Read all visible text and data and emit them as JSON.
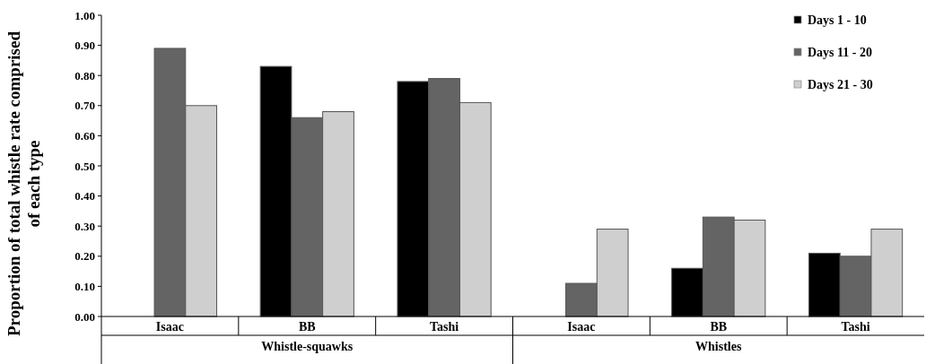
{
  "chart_data": {
    "type": "bar",
    "ylabel": "Proportion of total whistle rate comprised of each type",
    "categories": [
      "Isaac",
      "BB",
      "Tashi",
      "Isaac",
      "BB",
      "Tashi"
    ],
    "annotations": [
      "Whistle-squawks",
      "Whistles"
    ],
    "series": [
      {
        "name": "Days 1 - 10",
        "color": "#000000",
        "values": [
          null,
          0.83,
          0.78,
          null,
          0.16,
          0.21
        ]
      },
      {
        "name": "Days 11 - 20",
        "color": "#646464",
        "values": [
          0.89,
          0.66,
          0.79,
          0.11,
          0.33,
          0.2
        ]
      },
      {
        "name": "Days 21 - 30",
        "color": "#cfcfcf",
        "values": [
          0.7,
          0.68,
          0.71,
          0.29,
          0.32,
          0.29
        ]
      }
    ],
    "ylim": [
      0,
      1
    ],
    "yticks": [
      {
        "value": 0,
        "label": "0.00"
      },
      {
        "value": 0.1,
        "label": "0.10"
      },
      {
        "value": 0.2,
        "label": "0.20"
      },
      {
        "value": 0.3,
        "label": "0.30"
      },
      {
        "value": 0.4,
        "label": "0.40"
      },
      {
        "value": 0.5,
        "label": "0.50"
      },
      {
        "value": 0.6,
        "label": "0.60"
      },
      {
        "value": 0.7,
        "label": "0.70"
      },
      {
        "value": 0.8,
        "label": "0.80"
      },
      {
        "value": 0.9,
        "label": "0.90"
      },
      {
        "value": 1,
        "label": "1.00"
      }
    ],
    "grid": false,
    "legend": "top right"
  }
}
